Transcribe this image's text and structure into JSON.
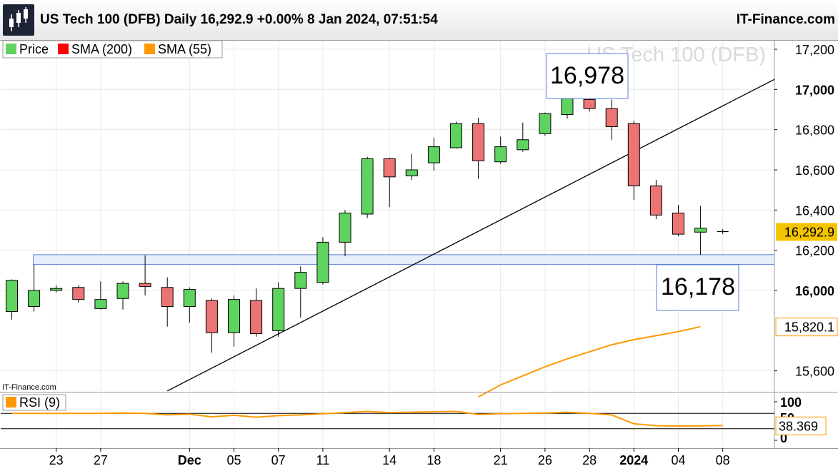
{
  "header": {
    "title": "US Tech 100 (DFB) Daily 16,292.9 +0.00% 8 Jan 2024, 07:51:54",
    "brand": "IT-Finance.com",
    "logo": "candlestick-logo-icon"
  },
  "colors": {
    "up": "#5fd35f",
    "down": "#ec7474",
    "sma55": "#ff9900",
    "box_border": "#5b7fd6",
    "box_fill": "#e8effc",
    "grid": "#e8e8e8",
    "last_price_bg": "#f5c400"
  },
  "chart_data": [
    {
      "type": "candlestick",
      "title": "US Tech 100 (DFB)",
      "legend": [
        {
          "label": "Price",
          "color": "#5fd35f"
        },
        {
          "label": "SMA (200)",
          "color": "#ff0000"
        },
        {
          "label": "SMA (55)",
          "color": "#ff9900"
        }
      ],
      "ylim": [
        15500,
        17250
      ],
      "yticks": [
        17200,
        17000,
        16800,
        16600,
        16400,
        16200,
        16000,
        15600
      ],
      "y_tick_labels": [
        "17,200",
        "17,000",
        "16,800",
        "16,600",
        "16,400",
        "16,200",
        "16,000",
        "15,600"
      ],
      "x_tick_labels": [
        {
          "label": "23",
          "index": 2
        },
        {
          "label": "27",
          "index": 4
        },
        {
          "label": "Dec",
          "index": 8,
          "bold": true
        },
        {
          "label": "05",
          "index": 10
        },
        {
          "label": "07",
          "index": 12
        },
        {
          "label": "11",
          "index": 14
        },
        {
          "label": "14",
          "index": 17
        },
        {
          "label": "18",
          "index": 19
        },
        {
          "label": "21",
          "index": 22
        },
        {
          "label": "26",
          "index": 24
        },
        {
          "label": "28",
          "index": 26
        },
        {
          "label": "2024",
          "index": 28,
          "bold": true
        },
        {
          "label": "04",
          "index": 30
        },
        {
          "label": "08",
          "index": 32
        }
      ],
      "candles": [
        {
          "o": 15895,
          "h": 16055,
          "l": 15855,
          "c": 16050
        },
        {
          "o": 15920,
          "h": 16130,
          "l": 15895,
          "c": 16000
        },
        {
          "o": 16000,
          "h": 16025,
          "l": 15990,
          "c": 16010
        },
        {
          "o": 16015,
          "h": 16025,
          "l": 15940,
          "c": 15955
        },
        {
          "o": 15910,
          "h": 16045,
          "l": 15905,
          "c": 15955
        },
        {
          "o": 15960,
          "h": 16045,
          "l": 15905,
          "c": 16035
        },
        {
          "o": 16035,
          "h": 16175,
          "l": 15975,
          "c": 16020
        },
        {
          "o": 16015,
          "h": 16065,
          "l": 15820,
          "c": 15920
        },
        {
          "o": 15920,
          "h": 16015,
          "l": 15840,
          "c": 16005
        },
        {
          "o": 15950,
          "h": 15960,
          "l": 15690,
          "c": 15790
        },
        {
          "o": 15790,
          "h": 15975,
          "l": 15720,
          "c": 15955
        },
        {
          "o": 15950,
          "h": 16010,
          "l": 15770,
          "c": 15785
        },
        {
          "o": 15800,
          "h": 16040,
          "l": 15770,
          "c": 16010
        },
        {
          "o": 16010,
          "h": 16120,
          "l": 15865,
          "c": 16090
        },
        {
          "o": 16040,
          "h": 16265,
          "l": 16030,
          "c": 16240
        },
        {
          "o": 16240,
          "h": 16400,
          "l": 16170,
          "c": 16385
        },
        {
          "o": 16380,
          "h": 16665,
          "l": 16360,
          "c": 16655
        },
        {
          "o": 16655,
          "h": 16660,
          "l": 16415,
          "c": 16565
        },
        {
          "o": 16570,
          "h": 16680,
          "l": 16550,
          "c": 16600
        },
        {
          "o": 16635,
          "h": 16760,
          "l": 16595,
          "c": 16715
        },
        {
          "o": 16710,
          "h": 16840,
          "l": 16705,
          "c": 16830
        },
        {
          "o": 16830,
          "h": 16860,
          "l": 16555,
          "c": 16645
        },
        {
          "o": 16640,
          "h": 16765,
          "l": 16630,
          "c": 16715
        },
        {
          "o": 16700,
          "h": 16835,
          "l": 16690,
          "c": 16750
        },
        {
          "o": 16780,
          "h": 16885,
          "l": 16770,
          "c": 16880
        },
        {
          "o": 16875,
          "h": 16978,
          "l": 16855,
          "c": 16955
        },
        {
          "o": 16950,
          "h": 16978,
          "l": 16890,
          "c": 16905
        },
        {
          "o": 16905,
          "h": 16950,
          "l": 16750,
          "c": 16815
        },
        {
          "o": 16830,
          "h": 16845,
          "l": 16450,
          "c": 16520
        },
        {
          "o": 16520,
          "h": 16550,
          "l": 16355,
          "c": 16375
        },
        {
          "o": 16385,
          "h": 16425,
          "l": 16270,
          "c": 16280
        },
        {
          "o": 16290,
          "h": 16420,
          "l": 16178,
          "c": 16310
        },
        {
          "o": 16293,
          "h": 16305,
          "l": 16280,
          "c": 16293
        }
      ],
      "sma55": [
        {
          "i": 21,
          "v": 15470
        },
        {
          "i": 22,
          "v": 15530
        },
        {
          "i": 23,
          "v": 15575
        },
        {
          "i": 24,
          "v": 15620
        },
        {
          "i": 25,
          "v": 15660
        },
        {
          "i": 26,
          "v": 15695
        },
        {
          "i": 27,
          "v": 15730
        },
        {
          "i": 28,
          "v": 15755
        },
        {
          "i": 29,
          "v": 15775
        },
        {
          "i": 30,
          "v": 15795
        },
        {
          "i": 31,
          "v": 15820.1
        }
      ],
      "trendline": [
        {
          "i": 7,
          "v": 15500
        },
        {
          "i": 34.5,
          "v": 17060
        }
      ],
      "support_zone": [
        16130,
        16178
      ],
      "support_zone_start": 1,
      "annotations": [
        {
          "text": "16,978",
          "anchor_index": 25,
          "value": 16978
        },
        {
          "text": "16,178",
          "anchor_index": 31,
          "value": 16178
        }
      ],
      "last_price_label": "16,292.9",
      "last_price": 16292.9,
      "sma55_label": "15,820.1",
      "sma55_last": 15820.1,
      "source_label": "IT-Finance.com"
    },
    {
      "type": "line",
      "legend": [
        {
          "label": "RSI (9)",
          "color": "#ff9900"
        }
      ],
      "ylim": [
        0,
        100
      ],
      "yticks": [
        100,
        0
      ],
      "y_tick_labels": [
        "100",
        "0"
      ],
      "levels": [
        70,
        30
      ],
      "hidden_tick_label": "50",
      "values": [
        70,
        70,
        70,
        70,
        70,
        71,
        70,
        66,
        68,
        61,
        65,
        60,
        64,
        66,
        69,
        72,
        75,
        72,
        73,
        74,
        75,
        67,
        69,
        70,
        71,
        73,
        70,
        66,
        43,
        38,
        37,
        37.5,
        38.369
      ],
      "last_label": "38.369",
      "last_value": 38.369
    }
  ]
}
